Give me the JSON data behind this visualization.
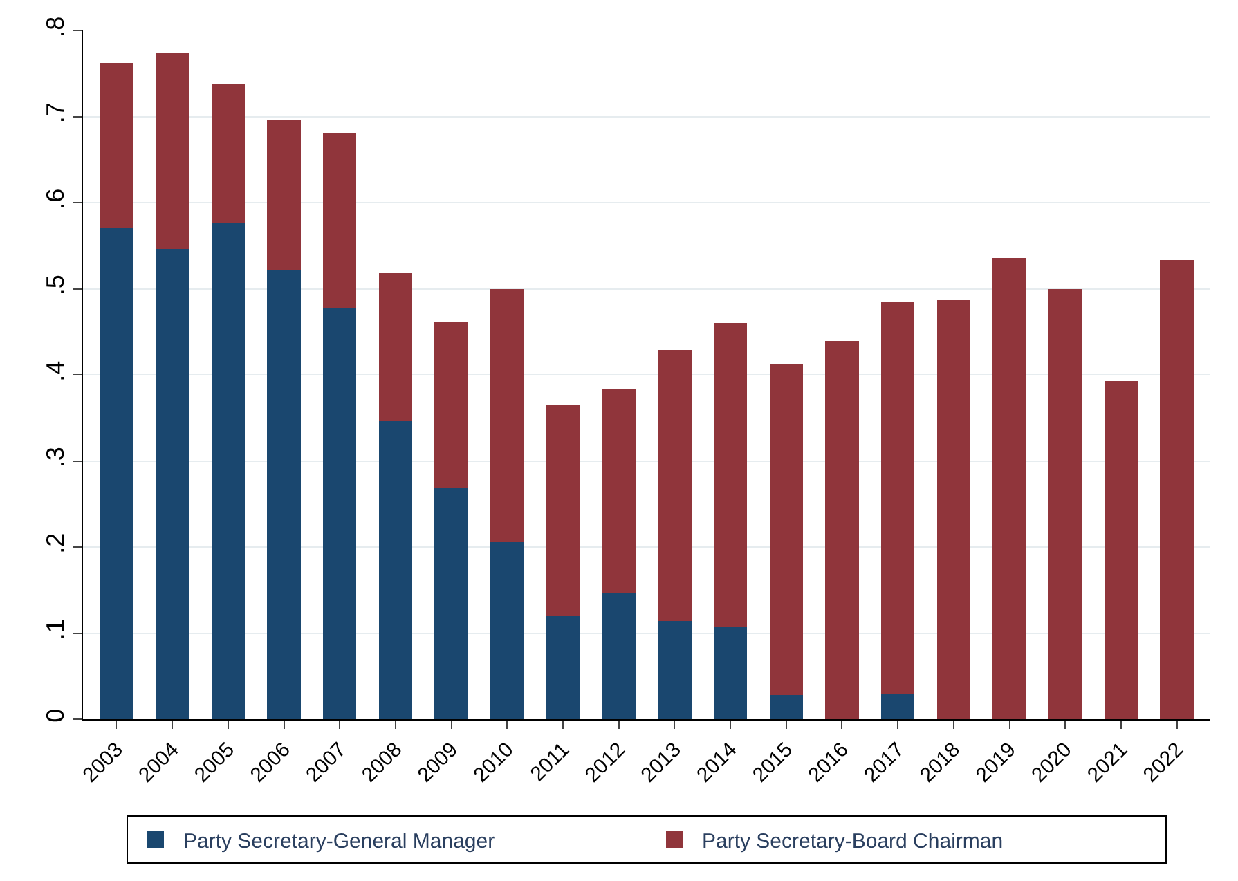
{
  "chart_data": {
    "type": "bar",
    "stacked": true,
    "categories": [
      "2003",
      "2004",
      "2005",
      "2006",
      "2007",
      "2008",
      "2009",
      "2010",
      "2011",
      "2012",
      "2013",
      "2014",
      "2015",
      "2016",
      "2017",
      "2018",
      "2019",
      "2020",
      "2021",
      "2022"
    ],
    "series": [
      {
        "name": "Party Secretary-General Manager",
        "color": "#1a476f",
        "values": [
          0.571,
          0.546,
          0.577,
          0.521,
          0.478,
          0.346,
          0.269,
          0.206,
          0.12,
          0.147,
          0.114,
          0.107,
          0.028,
          0,
          0.03,
          0,
          0,
          0,
          0,
          0
        ]
      },
      {
        "name": "Party Secretary-Board Chairman",
        "color": "#90353b",
        "values": [
          0.191,
          0.228,
          0.16,
          0.175,
          0.203,
          0.172,
          0.193,
          0.294,
          0.245,
          0.236,
          0.315,
          0.353,
          0.384,
          0.439,
          0.455,
          0.487,
          0.536,
          0.5,
          0.393,
          0.533
        ]
      }
    ],
    "ylim": [
      0,
      0.8
    ],
    "yticks": [
      {
        "value": 0,
        "label": "0"
      },
      {
        "value": 0.1,
        "label": ".1"
      },
      {
        "value": 0.2,
        "label": ".2"
      },
      {
        "value": 0.3,
        "label": ".3"
      },
      {
        "value": 0.4,
        "label": ".4"
      },
      {
        "value": 0.5,
        "label": ".5"
      },
      {
        "value": 0.6,
        "label": ".6"
      },
      {
        "value": 0.7,
        "label": ".7"
      },
      {
        "value": 0.8,
        "label": ".8"
      }
    ],
    "grid": "y",
    "legend": "bottom"
  }
}
